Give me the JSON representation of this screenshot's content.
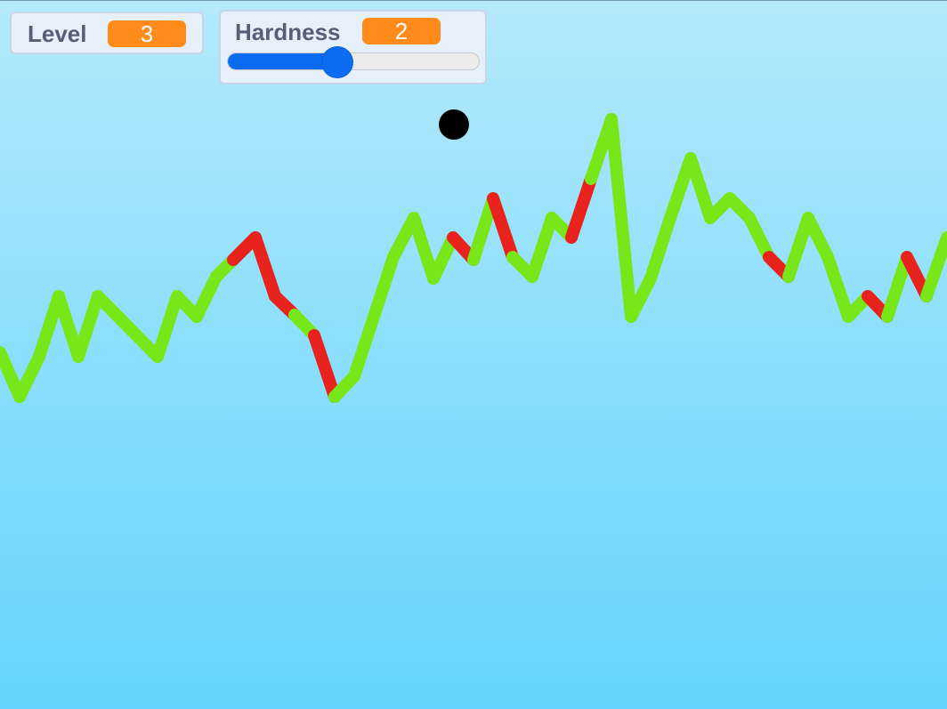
{
  "level_monitor": {
    "label": "Level",
    "value": "3"
  },
  "hardness_monitor": {
    "label": "Hardness",
    "value": "2",
    "slider": {
      "min": 0,
      "max": 5,
      "value": 2
    }
  },
  "colors": {
    "sky_top": "#b4e9fb",
    "sky_bottom": "#63d4fd",
    "track_safe": "#78e71a",
    "track_danger": "#e8231e",
    "ball": "#000000",
    "monitor_value_bg": "#ff8c1a",
    "slider_accent": "#0b6cf2"
  },
  "icons": {
    "player": "black-ball-icon"
  }
}
